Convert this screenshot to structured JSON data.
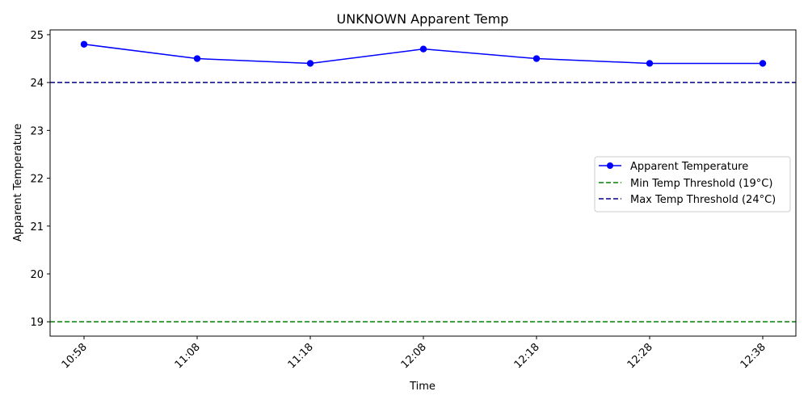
{
  "chart_data": {
    "type": "line",
    "title": "UNKNOWN Apparent Temp",
    "xlabel": "Time",
    "ylabel": "Apparent Temperature",
    "categories": [
      "10:58",
      "11:08",
      "11:18",
      "12:08",
      "12:18",
      "12:28",
      "12:38"
    ],
    "ylim": [
      18.7,
      25.1
    ],
    "yticks": [
      19,
      20,
      21,
      22,
      23,
      24,
      25
    ],
    "grid": false,
    "legend_position": "center-right",
    "series": [
      {
        "name": "Apparent Temperature",
        "values": [
          24.8,
          24.5,
          24.4,
          24.7,
          24.5,
          24.4,
          24.4
        ],
        "color": "#0000ff",
        "style": "solid-marker"
      }
    ],
    "thresholds": [
      {
        "name": "Min Temp Threshold (19°C)",
        "value": 19,
        "color": "#008000",
        "style": "dashed"
      },
      {
        "name": "Max Temp Threshold (24°C)",
        "value": 24,
        "color": "#00008b",
        "style": "dashed"
      }
    ]
  }
}
